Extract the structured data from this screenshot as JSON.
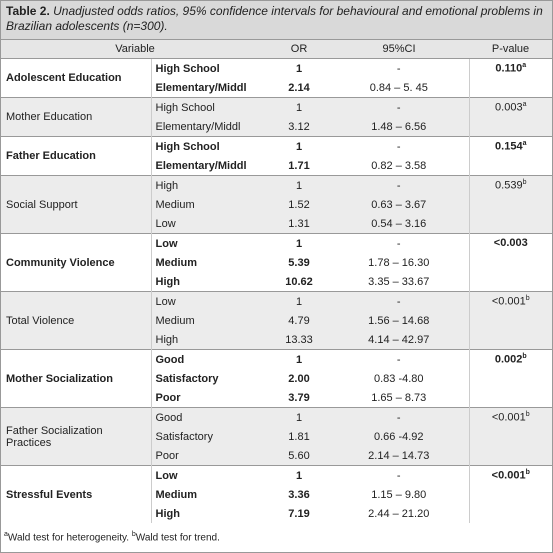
{
  "caption": {
    "label": "Table 2.",
    "text": "Unadjusted odds ratios, 95% confidence intervals for behavioural and emotional problems in Brazilian adolescents (n=300)."
  },
  "columns": [
    "Variable",
    "OR",
    "95%CI",
    "P-value"
  ],
  "groups": [
    {
      "name": "Adolescent Education",
      "p": "0.110",
      "sup": "a",
      "rows": [
        [
          "High School",
          "1",
          "-"
        ],
        [
          "Elementary/Middl",
          "2.14",
          "0.84 – 5. 45"
        ]
      ]
    },
    {
      "name": "Mother Education",
      "p": "0.003",
      "sup": "a",
      "rows": [
        [
          "High School",
          "1",
          "-"
        ],
        [
          "Elementary/Middl",
          "3.12",
          "1.48 – 6.56"
        ]
      ]
    },
    {
      "name": "Father Education",
      "p": "0.154",
      "sup": "a",
      "rows": [
        [
          "High School",
          "1",
          "-"
        ],
        [
          "Elementary/Middl",
          "1.71",
          "0.82 – 3.58"
        ]
      ]
    },
    {
      "name": "Social Support",
      "p": "0.539",
      "sup": "b",
      "rows": [
        [
          "High",
          "1",
          "-"
        ],
        [
          "Medium",
          "1.52",
          "0.63 – 3.67"
        ],
        [
          "Low",
          "1.31",
          "0.54 – 3.16"
        ]
      ]
    },
    {
      "name": "Community Violence",
      "p": "<0.003",
      "rows": [
        [
          "Low",
          "1",
          "-"
        ],
        [
          "Medium",
          "5.39",
          "1.78 – 16.30"
        ],
        [
          "High",
          "10.62",
          "3.35 – 33.67"
        ]
      ]
    },
    {
      "name": "Total Violence",
      "p": "<0.001",
      "sup": "b",
      "rows": [
        [
          "Low",
          "1",
          "-"
        ],
        [
          "Medium",
          "4.79",
          "1.56 – 14.68"
        ],
        [
          "High",
          "13.33",
          "4.14 – 42.97"
        ]
      ]
    },
    {
      "name": "Mother Socialization",
      "p": "0.002",
      "sup": "b",
      "rows": [
        [
          "Good",
          "1",
          "-"
        ],
        [
          "Satisfactory",
          "2.00",
          "0.83 -4.80"
        ],
        [
          "Poor",
          "3.79",
          "1.65 – 8.73"
        ]
      ]
    },
    {
      "name": "Father Socialization Practices",
      "p": "<0.001",
      "sup": "b",
      "rows": [
        [
          "Good",
          "1",
          "-"
        ],
        [
          "Satisfactory",
          "1.81",
          "0.66 -4.92"
        ],
        [
          "Poor",
          "5.60",
          "2.14 – 14.73"
        ]
      ]
    },
    {
      "name": "Stressful Events",
      "p": "<0.001",
      "sup": "b",
      "rows": [
        [
          "Low",
          "1",
          "-"
        ],
        [
          "Medium",
          "3.36",
          "1.15 – 9.80"
        ],
        [
          "High",
          "7.19",
          "2.44 – 21.20"
        ]
      ]
    }
  ],
  "footnotes": [
    {
      "sup": "a",
      "text": "Wald test for heterogeneity. "
    },
    {
      "sup": "b",
      "text": "Wald test for trend."
    }
  ]
}
